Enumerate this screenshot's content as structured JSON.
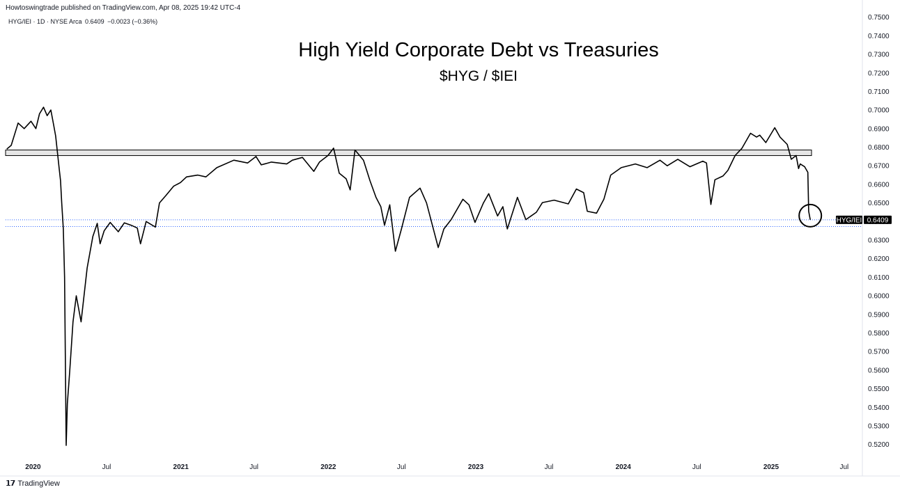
{
  "publisher": "Howtoswingtrade published on TradingView.com, Apr 08, 2025 19:42 UTC-4",
  "legend": {
    "symbol": "HYG/IEI · 1D · NYSE Arca",
    "last": "0.6409",
    "change": "−0.0023 (−0.36%)"
  },
  "brand": "TradingView",
  "colors": {
    "line": "#000000",
    "zone_fill": "#e6e6e6",
    "price_line": "#2962ff",
    "tag_bg": "#000000"
  },
  "chart_data": {
    "type": "line",
    "title": "High Yield Corporate Debt vs Treasuries",
    "subtitle": "$HYG / $IEI",
    "series": [
      {
        "name": "HYG/IEI",
        "x": [
          "2019-10-28",
          "2019-11-08",
          "2019-11-25",
          "2019-12-10",
          "2019-12-27",
          "2020-01-08",
          "2020-01-17",
          "2020-01-27",
          "2020-02-05",
          "2020-02-14",
          "2020-02-21",
          "2020-02-26",
          "2020-03-02",
          "2020-03-06",
          "2020-03-09",
          "2020-03-12",
          "2020-03-16",
          "2020-03-19",
          "2020-03-23",
          "2020-03-26",
          "2020-04-01",
          "2020-04-09",
          "2020-04-17",
          "2020-04-29",
          "2020-05-14",
          "2020-05-28",
          "2020-06-08",
          "2020-06-15",
          "2020-06-25",
          "2020-07-10",
          "2020-07-30",
          "2020-08-14",
          "2020-08-31",
          "2020-09-15",
          "2020-09-23",
          "2020-10-07",
          "2020-10-30",
          "2020-11-09",
          "2020-11-25",
          "2020-12-14",
          "2020-12-31",
          "2021-01-15",
          "2021-02-12",
          "2021-03-04",
          "2021-03-31",
          "2021-05-12",
          "2021-06-15",
          "2021-07-06",
          "2021-07-19",
          "2021-08-13",
          "2021-09-20",
          "2021-10-04",
          "2021-10-29",
          "2021-11-26",
          "2021-12-10",
          "2021-12-31",
          "2022-01-14",
          "2022-01-28",
          "2022-02-14",
          "2022-02-24",
          "2022-03-08",
          "2022-03-29",
          "2022-04-14",
          "2022-04-29",
          "2022-05-11",
          "2022-05-20",
          "2022-06-02",
          "2022-06-16",
          "2022-07-01",
          "2022-07-21",
          "2022-08-16",
          "2022-09-01",
          "2022-09-30",
          "2022-10-14",
          "2022-11-01",
          "2022-11-30",
          "2022-12-15",
          "2022-12-30",
          "2023-01-20",
          "2023-02-02",
          "2023-02-24",
          "2023-03-09",
          "2023-03-20",
          "2023-04-14",
          "2023-05-05",
          "2023-05-31",
          "2023-06-15",
          "2023-07-14",
          "2023-08-18",
          "2023-09-07",
          "2023-09-25",
          "2023-10-04",
          "2023-10-27",
          "2023-11-14",
          "2023-12-01",
          "2023-12-27",
          "2024-01-31",
          "2024-02-29",
          "2024-04-01",
          "2024-04-19",
          "2024-05-15",
          "2024-06-14",
          "2024-07-16",
          "2024-07-25",
          "2024-08-05",
          "2024-08-15",
          "2024-09-04",
          "2024-09-16",
          "2024-10-04",
          "2024-10-21",
          "2024-11-11",
          "2024-11-26",
          "2024-12-04",
          "2024-12-19",
          "2025-01-10",
          "2025-01-23",
          "2025-02-10",
          "2025-02-20",
          "2025-03-04",
          "2025-03-10",
          "2025-03-14",
          "2025-03-25",
          "2025-04-02",
          "2025-04-04",
          "2025-04-08"
        ],
        "y": [
          0.679,
          0.681,
          0.693,
          0.69,
          0.694,
          0.69,
          0.698,
          0.7015,
          0.697,
          0.7,
          0.692,
          0.686,
          0.676,
          0.668,
          0.662,
          0.65,
          0.636,
          0.61,
          0.5195,
          0.542,
          0.56,
          0.586,
          0.6,
          0.586,
          0.615,
          0.632,
          0.639,
          0.628,
          0.635,
          0.6395,
          0.6345,
          0.6393,
          0.638,
          0.6365,
          0.628,
          0.64,
          0.637,
          0.65,
          0.654,
          0.659,
          0.661,
          0.664,
          0.665,
          0.664,
          0.669,
          0.673,
          0.6715,
          0.675,
          0.6705,
          0.672,
          0.671,
          0.673,
          0.6745,
          0.667,
          0.672,
          0.6755,
          0.6795,
          0.666,
          0.663,
          0.657,
          0.6785,
          0.673,
          0.662,
          0.653,
          0.648,
          0.638,
          0.649,
          0.624,
          0.636,
          0.653,
          0.658,
          0.65,
          0.626,
          0.636,
          0.641,
          0.652,
          0.649,
          0.6395,
          0.65,
          0.655,
          0.643,
          0.648,
          0.636,
          0.653,
          0.641,
          0.645,
          0.6502,
          0.6515,
          0.6495,
          0.6575,
          0.6555,
          0.6455,
          0.6445,
          0.652,
          0.665,
          0.669,
          0.671,
          0.669,
          0.673,
          0.67,
          0.6735,
          0.6695,
          0.6725,
          0.6715,
          0.6492,
          0.6625,
          0.6645,
          0.6675,
          0.6755,
          0.6795,
          0.6875,
          0.6855,
          0.6865,
          0.6825,
          0.6905,
          0.6855,
          0.6815,
          0.6735,
          0.6755,
          0.6685,
          0.671,
          0.6695,
          0.6665,
          0.6455,
          0.6409
        ]
      }
    ],
    "xlim": [
      "2019-10-25",
      "2025-08-15"
    ],
    "ylim": [
      0.5135,
      0.7525
    ],
    "y_scale": "linear",
    "y_ticks": [
      "0.7500",
      "0.7400",
      "0.7300",
      "0.7200",
      "0.7100",
      "0.7000",
      "0.6900",
      "0.6800",
      "0.6700",
      "0.6600",
      "0.6500",
      "0.6400",
      "0.6300",
      "0.6200",
      "0.6100",
      "0.6000",
      "0.5900",
      "0.5800",
      "0.5700",
      "0.5600",
      "0.5500",
      "0.5400",
      "0.5300",
      "0.5200"
    ],
    "x_ticks": [
      {
        "label": "2020",
        "date": "2020-01-01",
        "bold": true
      },
      {
        "label": "Jul",
        "date": "2020-07-01",
        "bold": false
      },
      {
        "label": "2021",
        "date": "2021-01-01",
        "bold": true
      },
      {
        "label": "Jul",
        "date": "2021-07-01",
        "bold": false
      },
      {
        "label": "2022",
        "date": "2022-01-01",
        "bold": true
      },
      {
        "label": "Jul",
        "date": "2022-07-01",
        "bold": false
      },
      {
        "label": "2023",
        "date": "2023-01-01",
        "bold": true
      },
      {
        "label": "Jul",
        "date": "2023-07-01",
        "bold": false
      },
      {
        "label": "2024",
        "date": "2024-01-01",
        "bold": true
      },
      {
        "label": "Jul",
        "date": "2024-07-01",
        "bold": false
      },
      {
        "label": "2025",
        "date": "2025-01-01",
        "bold": true
      },
      {
        "label": "Jul",
        "date": "2025-07-01",
        "bold": false
      }
    ],
    "resistance_zone": {
      "from": 0.6755,
      "to": 0.6785,
      "x_start": "2019-10-25",
      "x_end": "2025-04-08"
    },
    "last_price_label": {
      "name": "HYG/IEI",
      "value": "0.6409",
      "y": 0.6409
    },
    "reference_line": 0.6373,
    "annotation_circle": {
      "x": "2025-04-08",
      "y": 0.6409
    },
    "grid": false,
    "legend_position": "top-left"
  }
}
